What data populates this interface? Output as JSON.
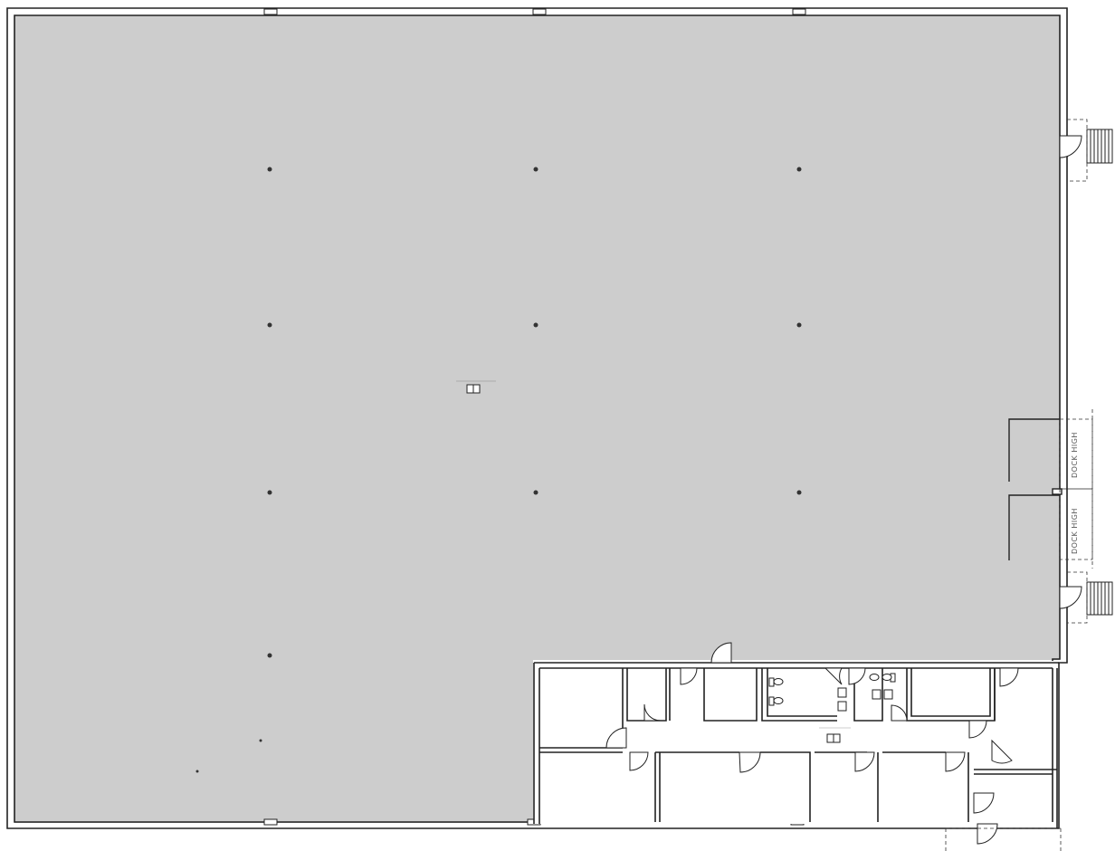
{
  "colors": {
    "warehouse_fill": "#cdcdcd",
    "office_fill": "#ffffff",
    "wall": "#222222",
    "background": "#ffffff"
  },
  "floor_plan": {
    "labels": {
      "dock_upper": "DOCK HIGH",
      "dock_lower": "DOCK HIGH"
    },
    "column_grid": {
      "columns_across": 3,
      "rows_down": 3
    },
    "icons": [
      "column-icon",
      "door-swing-icon",
      "toilet-icon",
      "sink-icon",
      "stair-icon",
      "water-fountain-icon",
      "loading-dock-icon"
    ]
  }
}
